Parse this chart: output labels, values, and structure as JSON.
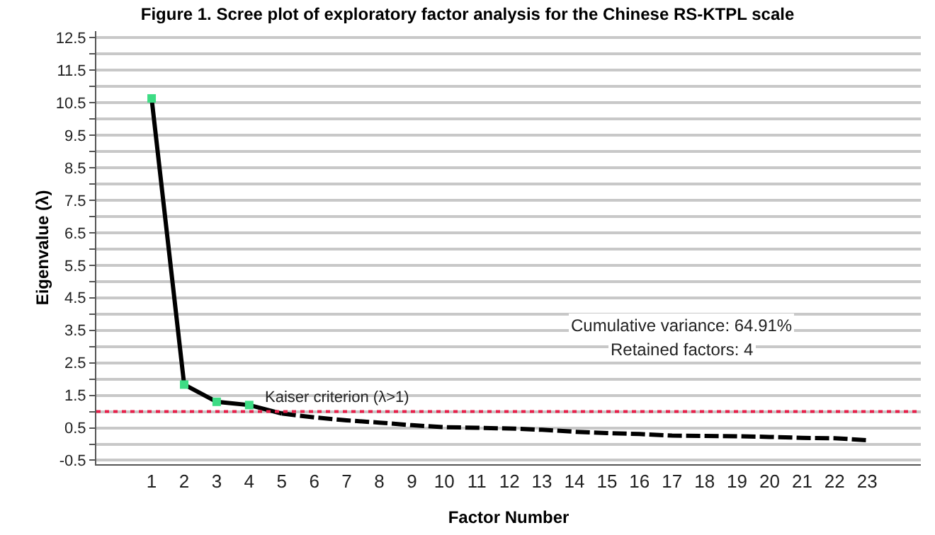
{
  "chart_data": {
    "type": "line",
    "title": "Figure 1. Scree plot of exploratory factor analysis for the Chinese RS-KTPL scale",
    "xlabel": "Factor Number",
    "ylabel": "Eigenvalue (λ)",
    "series": [
      {
        "color": "#000000",
        "line_style": "solid",
        "marker": "none",
        "x": [
          1,
          2,
          3,
          4,
          5
        ],
        "values": [
          10.63,
          1.83,
          1.3,
          1.2,
          0.94
        ]
      },
      {
        "color": "#000000",
        "line_style": "dashed",
        "marker": "none",
        "x": [
          5,
          6,
          7,
          8,
          9,
          10,
          11,
          12,
          13,
          14,
          15,
          16,
          17,
          18,
          19,
          20,
          21,
          22,
          23
        ],
        "values": [
          0.94,
          0.82,
          0.73,
          0.66,
          0.58,
          0.52,
          0.5,
          0.48,
          0.44,
          0.38,
          0.34,
          0.31,
          0.26,
          0.25,
          0.24,
          0.22,
          0.19,
          0.18,
          0.12
        ]
      },
      {
        "type": "scatter",
        "color": "#3ddc84",
        "marker": "square",
        "x": [
          1,
          2,
          3,
          4
        ],
        "values": [
          10.63,
          1.83,
          1.3,
          1.2
        ]
      }
    ],
    "xlim": [
      -0.7,
      24.65
    ],
    "xticks": [
      1,
      2,
      3,
      4,
      5,
      6,
      7,
      8,
      9,
      10,
      11,
      12,
      13,
      14,
      15,
      16,
      17,
      18,
      19,
      20,
      21,
      22,
      23
    ],
    "ylim": [
      -0.62,
      12.7
    ],
    "yticks": [
      -0.5,
      {
        "value": 0,
        "label": null
      },
      0.5,
      {
        "value": 1,
        "label": null
      },
      1.5,
      {
        "value": 2,
        "label": null
      },
      2.5,
      {
        "value": 3,
        "label": null
      },
      3.5,
      {
        "value": 4,
        "label": null
      },
      4.5,
      {
        "value": 5,
        "label": null
      },
      5.5,
      {
        "value": 6,
        "label": null
      },
      6.5,
      {
        "value": 7,
        "label": null
      },
      7.5,
      {
        "value": 8,
        "label": null
      },
      8.5,
      {
        "value": 9,
        "label": null
      },
      9.5,
      {
        "value": 10,
        "label": null
      },
      10.5,
      {
        "value": 11,
        "label": null
      },
      11.5,
      {
        "value": 12,
        "label": null
      },
      12.5
    ],
    "ref_lines": [
      {
        "axis": "y",
        "value": 1,
        "label": "Kaiser criterion (λ>1)",
        "color": "#e8204a",
        "line_style": "dotted"
      }
    ],
    "annotations": [
      "Cumulative variance: 64.91%",
      "Retained factors: 4"
    ],
    "grid": "y"
  }
}
